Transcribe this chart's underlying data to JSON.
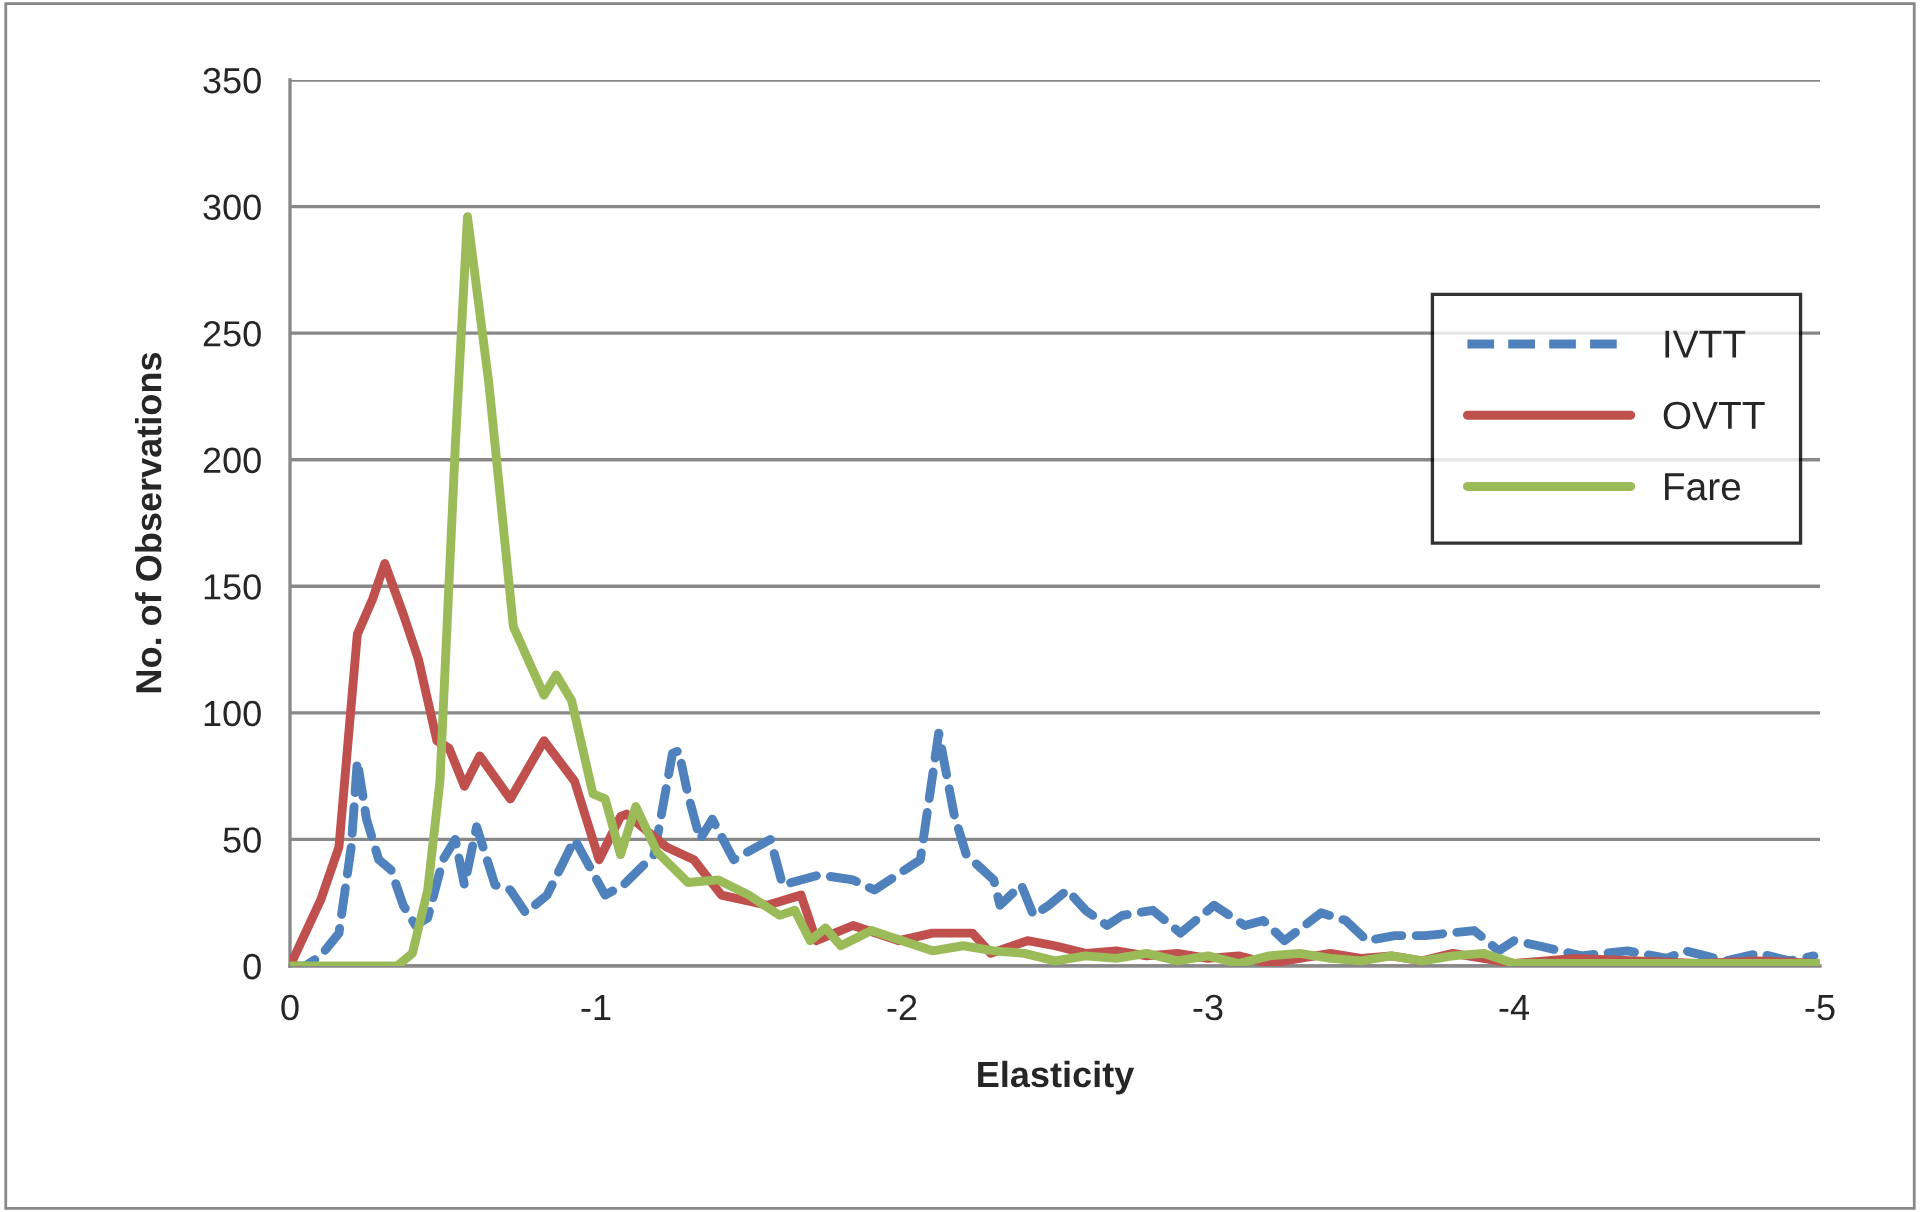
{
  "chart_data": {
    "type": "line",
    "xlabel": "Elasticity",
    "ylabel": "No. of Observations",
    "xlim": [
      0,
      -5
    ],
    "xticks": [
      0,
      -1,
      -2,
      -3,
      -4,
      -5
    ],
    "ylim": [
      0,
      350
    ],
    "yticks": [
      0,
      50,
      100,
      150,
      200,
      250,
      300,
      350
    ],
    "grid": "y",
    "legend": "top right",
    "marker": "none",
    "series": [
      {
        "name": "IVTT",
        "color": "#4f81bd",
        "line_style": "dashed",
        "x": [
          0,
          -0.05,
          -0.1,
          -0.16,
          -0.2,
          -0.22,
          -0.25,
          -0.29,
          -0.33,
          -0.37,
          -0.41,
          -0.45,
          -0.5,
          -0.54,
          -0.57,
          -0.61,
          -0.67,
          -0.72,
          -0.77,
          -0.84,
          -0.93,
          -1.03,
          -1.09,
          -1.19,
          -1.25,
          -1.27,
          -1.3,
          -1.34,
          -1.38,
          -1.45,
          -1.57,
          -1.61,
          -1.73,
          -1.84,
          -1.91,
          -2.06,
          -2.12,
          -2.17,
          -2.21,
          -2.3,
          -2.32,
          -2.39,
          -2.43,
          -2.48,
          -2.54,
          -2.6,
          -2.67,
          -2.72,
          -2.82,
          -2.91,
          -3.02,
          -3.12,
          -3.18,
          -3.25,
          -3.37,
          -3.45,
          -3.52,
          -3.61,
          -3.71,
          -3.87,
          -3.95,
          -4.0,
          -4.08,
          -4.22,
          -4.37,
          -4.5,
          -4.56,
          -4.69,
          -4.8,
          -4.9,
          -4.98
        ],
        "values": [
          0,
          0,
          4,
          13,
          47,
          81,
          58,
          42,
          38,
          24,
          16,
          19,
          42,
          50,
          32,
          55,
          32,
          30,
          21,
          28,
          50,
          28,
          32,
          44,
          84,
          85,
          68,
          50,
          58,
          42,
          50,
          32,
          36,
          34,
          30,
          42,
          92,
          60,
          44,
          34,
          24,
          32,
          20,
          24,
          30,
          22,
          16,
          20,
          22,
          13,
          24,
          16,
          18,
          10,
          21,
          18,
          10,
          12,
          12,
          14,
          6,
          10,
          8,
          4,
          6,
          3,
          6,
          2,
          5,
          2,
          4
        ]
      },
      {
        "name": "OVTT",
        "color": "#c0504d",
        "line_style": "solid",
        "x": [
          0,
          -0.1,
          -0.16,
          -0.22,
          -0.27,
          -0.31,
          -0.37,
          -0.42,
          -0.48,
          -0.52,
          -0.57,
          -0.62,
          -0.72,
          -0.83,
          -0.93,
          -1.01,
          -1.08,
          -1.1,
          -1.23,
          -1.32,
          -1.41,
          -1.56,
          -1.67,
          -1.72,
          -1.84,
          -1.99,
          -2.1,
          -2.23,
          -2.29,
          -2.41,
          -2.5,
          -2.6,
          -2.7,
          -2.8,
          -2.9,
          -3.0,
          -3.1,
          -3.2,
          -3.3,
          -3.4,
          -3.5,
          -3.6,
          -3.7,
          -3.8,
          -3.9,
          -4.0,
          -4.2,
          -4.4,
          -4.6,
          -4.8,
          -5.0
        ],
        "values": [
          0,
          26,
          47,
          131,
          145,
          159,
          139,
          121,
          89,
          86,
          71,
          83,
          66,
          89,
          73,
          42,
          59,
          60,
          47,
          42,
          28,
          24,
          28,
          10,
          16,
          10,
          13,
          13,
          5,
          10,
          8,
          5,
          6,
          4,
          5,
          3,
          4,
          1,
          3,
          5,
          3,
          4,
          2,
          5,
          3,
          1,
          3,
          2,
          1,
          2,
          1
        ]
      },
      {
        "name": "Fare",
        "color": "#9bbb59",
        "line_style": "solid",
        "x": [
          0,
          -0.2,
          -0.35,
          -0.4,
          -0.45,
          -0.49,
          -0.54,
          -0.58,
          -0.65,
          -0.73,
          -0.83,
          -0.87,
          -0.92,
          -0.99,
          -1.03,
          -1.08,
          -1.13,
          -1.2,
          -1.3,
          -1.4,
          -1.5,
          -1.6,
          -1.65,
          -1.7,
          -1.75,
          -1.8,
          -1.9,
          -2.0,
          -2.1,
          -2.2,
          -2.3,
          -2.4,
          -2.5,
          -2.6,
          -2.7,
          -2.8,
          -2.9,
          -3.0,
          -3.1,
          -3.2,
          -3.3,
          -3.4,
          -3.5,
          -3.6,
          -3.7,
          -3.8,
          -3.9,
          -4.0,
          -4.2,
          -4.5,
          -4.8,
          -5.0
        ],
        "values": [
          0,
          0,
          0,
          5,
          30,
          73,
          205,
          296,
          230,
          134,
          107,
          115,
          105,
          68,
          66,
          44,
          63,
          45,
          33,
          34,
          28,
          20,
          22,
          10,
          15,
          8,
          14,
          10,
          6,
          8,
          6,
          5,
          2,
          4,
          3,
          5,
          2,
          4,
          1,
          4,
          5,
          3,
          2,
          4,
          2,
          4,
          5,
          1,
          1,
          1,
          1,
          1
        ]
      }
    ]
  }
}
